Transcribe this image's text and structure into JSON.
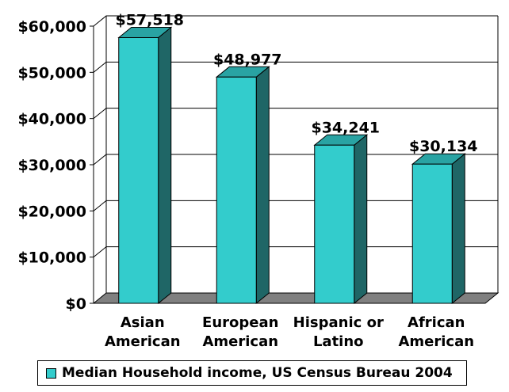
{
  "chart_data": {
    "type": "bar",
    "categories": [
      [
        "Asian",
        "American"
      ],
      [
        "European",
        "American"
      ],
      [
        "Hispanic or",
        "Latino"
      ],
      [
        "African",
        "American"
      ]
    ],
    "series": [
      {
        "name": "Median Household income, US Census Bureau 2004",
        "values": [
          57518,
          48977,
          34241,
          30134
        ],
        "labels": [
          "$57,518",
          "$48,977",
          "$34,241",
          "$30,134"
        ]
      }
    ],
    "yticks": [
      "$0",
      "$10,000",
      "$20,000",
      "$30,000",
      "$40,000",
      "$50,000",
      "$60,000"
    ],
    "ylim": [
      0,
      60000
    ],
    "grid": true,
    "legend_position": "bottom",
    "colors": {
      "front": "#33CCCC",
      "side": "#1F6666",
      "top": "#29A3A3",
      "floor": "#808080",
      "grid": "#000000"
    }
  }
}
